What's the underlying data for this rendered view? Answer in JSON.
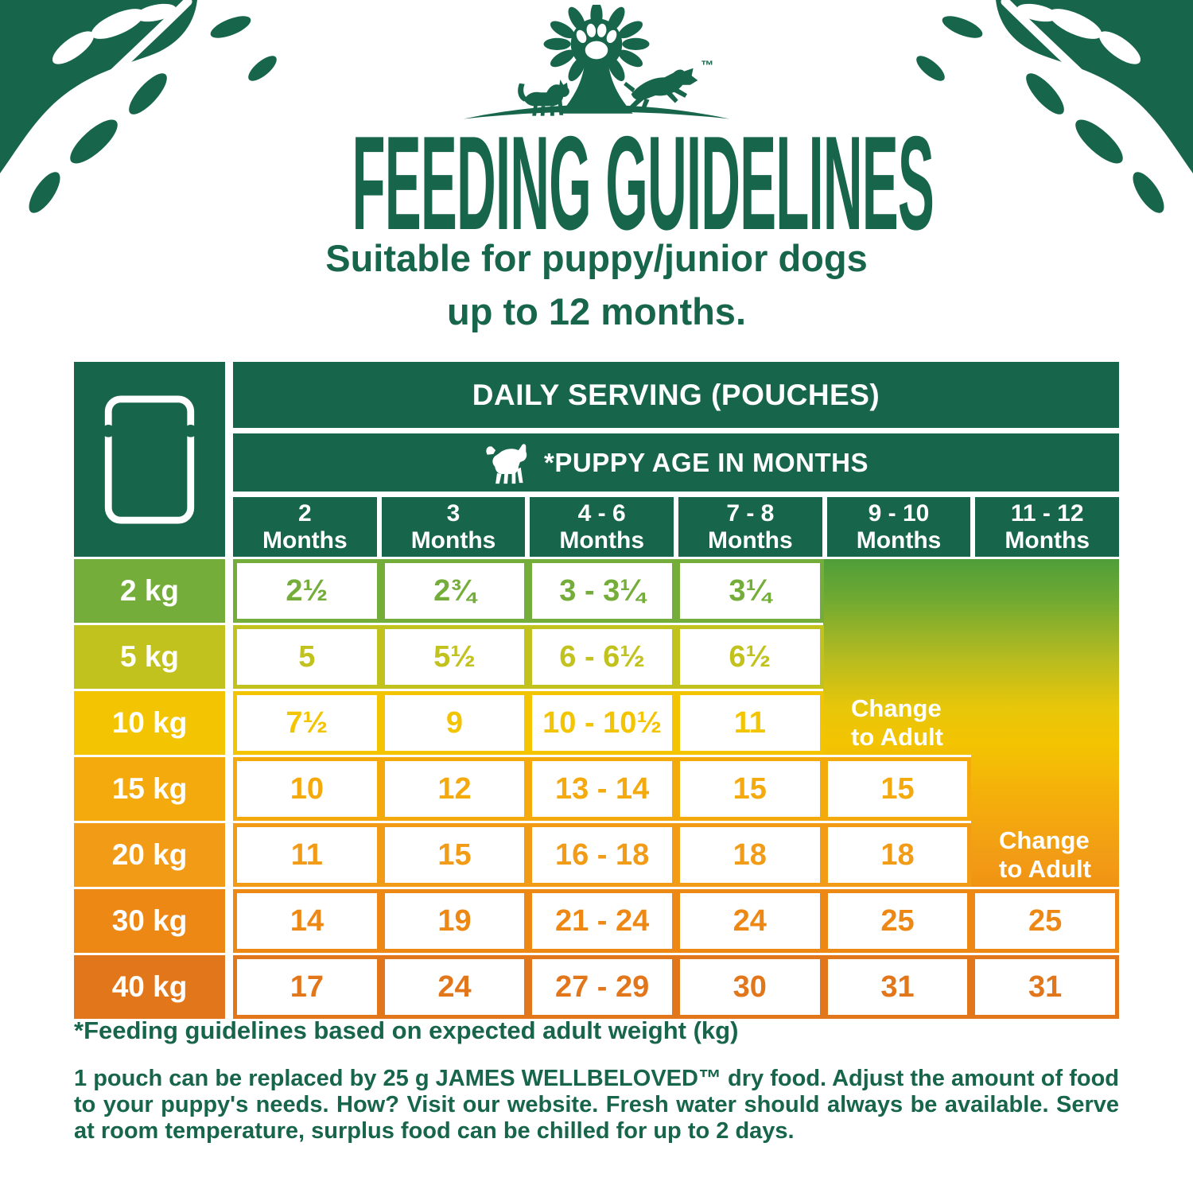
{
  "colors": {
    "brand_green": "#17654a",
    "gradient_top": "#4f9e3a",
    "gradient_yellow": "#f3c402",
    "gradient_bottom": "#f09312"
  },
  "logo": {
    "trademark": "™"
  },
  "title": "FEEDING GUIDELINES",
  "subtitle": {
    "line1": "Suitable for puppy/junior dogs",
    "line2": "up to 12 months."
  },
  "table": {
    "serving_header": "DAILY SERVING (POUCHES)",
    "age_header": "*PUPPY AGE IN MONTHS",
    "columns": [
      {
        "range": "2",
        "unit": "Months"
      },
      {
        "range": "3",
        "unit": "Months"
      },
      {
        "range": "4 - 6",
        "unit": "Months"
      },
      {
        "range": "7 - 8",
        "unit": "Months"
      },
      {
        "range": "9 - 10",
        "unit": "Months"
      },
      {
        "range": "11 - 12",
        "unit": "Months"
      }
    ],
    "change_to_adult": {
      "line1": "Change",
      "line2": "to Adult"
    },
    "rows": [
      {
        "weight": "2 kg",
        "color": "#74ad3a",
        "values": [
          "2½",
          "2¾",
          "3 - 3¼",
          "3¼"
        ]
      },
      {
        "weight": "5 kg",
        "color": "#c1c21d",
        "values": [
          "5",
          "5½",
          "6 - 6½",
          "6½"
        ]
      },
      {
        "weight": "10 kg",
        "color": "#f3c402",
        "values": [
          "7½",
          "9",
          "10 - 10½",
          "11"
        ]
      },
      {
        "weight": "15 kg",
        "color": "#f4a90d",
        "values": [
          "10",
          "12",
          "13 - 14",
          "15",
          "15"
        ]
      },
      {
        "weight": "20 kg",
        "color": "#f29b16",
        "values": [
          "11",
          "15",
          "16 - 18",
          "18",
          "18"
        ]
      },
      {
        "weight": "30 kg",
        "color": "#ee8814",
        "values": [
          "14",
          "19",
          "21 - 24",
          "24",
          "25",
          "25"
        ]
      },
      {
        "weight": "40 kg",
        "color": "#e2761b",
        "values": [
          "17",
          "24",
          "27 - 29",
          "30",
          "31",
          "31"
        ]
      }
    ]
  },
  "footnotes": {
    "weight_note": "*Feeding guidelines based on expected adult weight (kg)",
    "feeding_note": "1 pouch can be replaced by 25 g JAMES WELLBELOVED™ dry food. Adjust the amount of food to your puppy's needs. How? Visit our website. Fresh water should always be available. Serve at room temperature, surplus food can be chilled for up to 2 days."
  }
}
